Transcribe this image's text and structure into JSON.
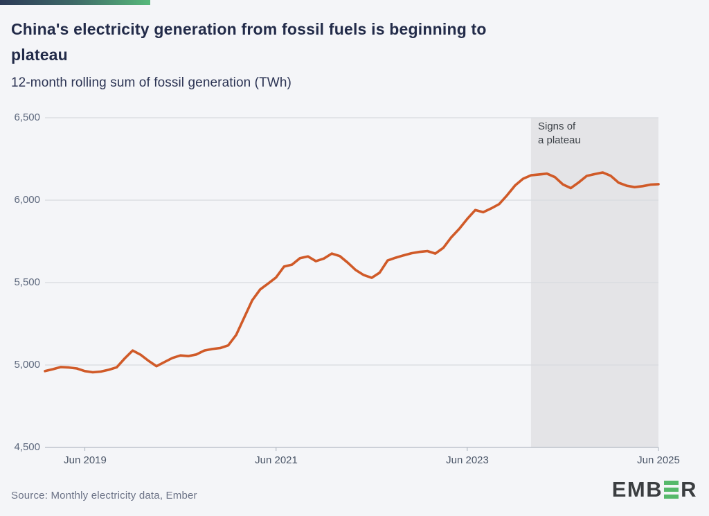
{
  "page": {
    "title_line1": "China's electricity generation from fossil fuels is beginning to",
    "title_line2": "plateau",
    "subtitle": "12-month rolling sum of fossil generation (TWh)",
    "source": "Source: Monthly electricity data, Ember",
    "accent_gradient_from": "#2c3a57",
    "accent_gradient_to": "#57b97b",
    "background_color": "#f4f5f8"
  },
  "logo": {
    "text_left": "EMB",
    "text_right": "R",
    "bar_color": "#56b96b",
    "text_color": "#3b3e41"
  },
  "chart_data": {
    "type": "line",
    "title": "China's electricity generation from fossil fuels is beginning to plateau",
    "subtitle": "12-month rolling sum of fossil generation (TWh)",
    "xlabel": "",
    "ylabel": "TWh",
    "ylim": [
      4500,
      6500
    ],
    "grid": true,
    "line_color": "#d05a28",
    "grid_color": "#d6d9df",
    "axis_line_color": "#b3bac4",
    "x": [
      "2019-01",
      "2019-02",
      "2019-03",
      "2019-04",
      "2019-05",
      "2019-06",
      "2019-07",
      "2019-08",
      "2019-09",
      "2019-10",
      "2019-11",
      "2019-12",
      "2020-01",
      "2020-02",
      "2020-03",
      "2020-04",
      "2020-05",
      "2020-06",
      "2020-07",
      "2020-08",
      "2020-09",
      "2020-10",
      "2020-11",
      "2020-12",
      "2021-01",
      "2021-02",
      "2021-03",
      "2021-04",
      "2021-05",
      "2021-06",
      "2021-07",
      "2021-08",
      "2021-09",
      "2021-10",
      "2021-11",
      "2021-12",
      "2022-01",
      "2022-02",
      "2022-03",
      "2022-04",
      "2022-05",
      "2022-06",
      "2022-07",
      "2022-08",
      "2022-09",
      "2022-10",
      "2022-11",
      "2022-12",
      "2023-01",
      "2023-02",
      "2023-03",
      "2023-04",
      "2023-05",
      "2023-06",
      "2023-07",
      "2023-08",
      "2023-09",
      "2023-10",
      "2023-11",
      "2023-12",
      "2024-01",
      "2024-02",
      "2024-03",
      "2024-04",
      "2024-05",
      "2024-06",
      "2024-07",
      "2024-08",
      "2024-09",
      "2024-10",
      "2024-11",
      "2024-12",
      "2025-01",
      "2025-02",
      "2025-03",
      "2025-04",
      "2025-05",
      "2025-06"
    ],
    "values": [
      4963,
      4975,
      4988,
      4985,
      4979,
      4963,
      4956,
      4960,
      4971,
      4986,
      5040,
      5088,
      5062,
      5025,
      4993,
      5018,
      5043,
      5058,
      5054,
      5064,
      5088,
      5097,
      5103,
      5119,
      5183,
      5288,
      5392,
      5458,
      5494,
      5531,
      5597,
      5609,
      5648,
      5659,
      5630,
      5646,
      5676,
      5661,
      5621,
      5576,
      5546,
      5529,
      5560,
      5634,
      5651,
      5665,
      5678,
      5686,
      5691,
      5676,
      5711,
      5775,
      5826,
      5886,
      5940,
      5927,
      5950,
      5976,
      6030,
      6089,
      6130,
      6151,
      6156,
      6161,
      6140,
      6096,
      6073,
      6108,
      6147,
      6158,
      6168,
      6148,
      6106,
      6088,
      6079,
      6085,
      6094,
      6097
    ],
    "y_ticks": [
      "6,500",
      "6,000",
      "5,500",
      "5,000",
      "4,500"
    ],
    "y_tick_values": [
      6500,
      6000,
      5500,
      5000,
      4500
    ],
    "x_tick_labels": [
      "Jun 2019",
      "Jun 2021",
      "Jun 2023",
      "Jun 2025"
    ],
    "x_tick_indices": [
      5,
      29,
      53,
      77
    ],
    "legend": "none",
    "annotation": {
      "line1": "Signs of",
      "line2": "a plateau",
      "region_start": "2024-02",
      "region_start_index": 61,
      "shade_color": "#e4e4e7"
    }
  }
}
